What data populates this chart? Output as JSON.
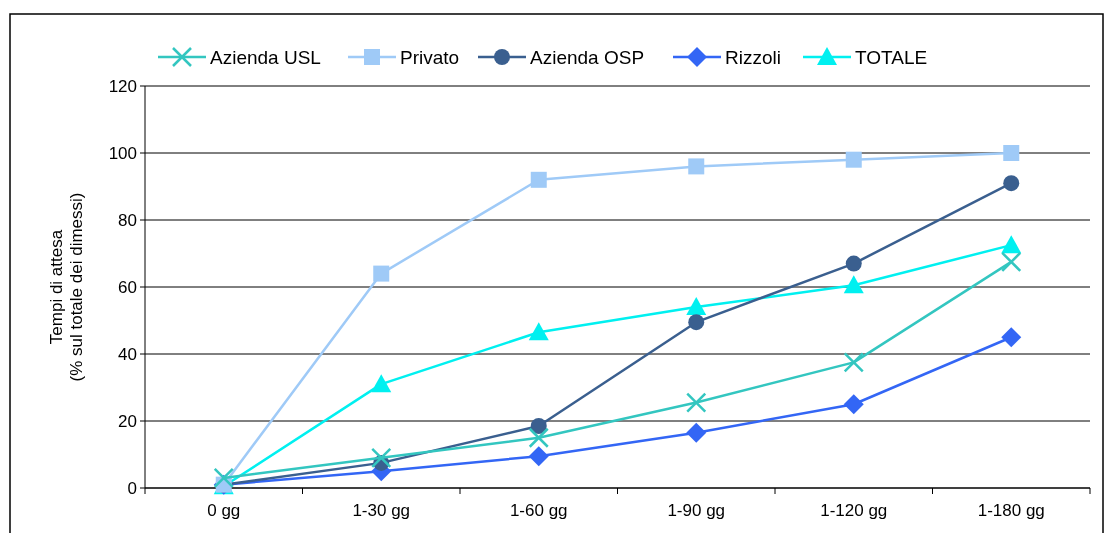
{
  "chart_data": {
    "type": "line",
    "ylabel": "Tempi di attesa\n(% sul totale dei dimessi)",
    "categories": [
      "0 gg",
      "1-30 gg",
      "1-60 gg",
      "1-90 gg",
      "1-120 gg",
      "1-180 gg"
    ],
    "series": [
      {
        "name": "Azienda USL",
        "color": "#33c6c0",
        "marker": "cross",
        "values": [
          3,
          9,
          15,
          25.5,
          37.5,
          67.5
        ]
      },
      {
        "name": "Privato",
        "color": "#9fcaf7",
        "marker": "square",
        "values": [
          1,
          64,
          92,
          96,
          98,
          100
        ]
      },
      {
        "name": "Azienda OSP",
        "color": "#3a5f8f",
        "marker": "circle",
        "values": [
          1,
          7.5,
          18.5,
          49.5,
          67,
          91
        ]
      },
      {
        "name": "Rizzoli",
        "color": "#3366f5",
        "marker": "diamond",
        "values": [
          1,
          5,
          9.5,
          16.5,
          25,
          45
        ]
      },
      {
        "name": "TOTALE",
        "color": "#00f0f0",
        "marker": "triangle",
        "values": [
          0.5,
          31,
          46.5,
          54,
          60.5,
          72.5
        ]
      }
    ],
    "ylim": [
      0,
      120
    ],
    "yticks": [
      0,
      20,
      40,
      60,
      80,
      100,
      120
    ],
    "grid": "y",
    "legend": "top"
  }
}
